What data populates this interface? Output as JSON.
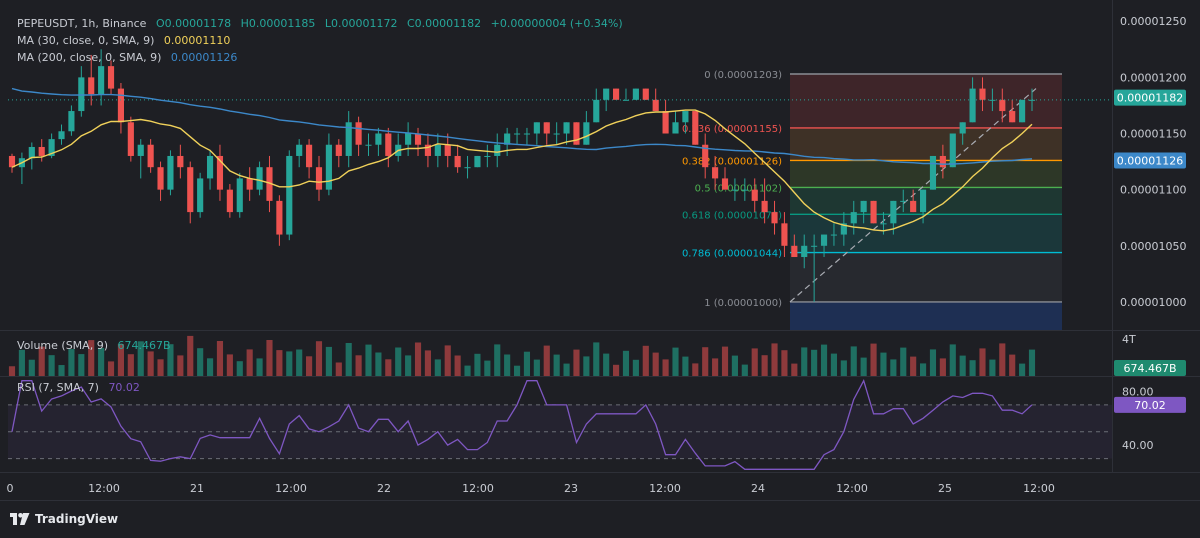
{
  "header": {
    "symbol_line": "PEPEUSDT, 1h, Binance",
    "o": "O0.00001178",
    "h": "H0.00001185",
    "l": "L0.00001172",
    "c": "C0.00001182",
    "change": "+0.00000004 (+0.34%)",
    "ma30_label": "MA (30, close, 0, SMA, 9)",
    "ma30_value": "0.00001110",
    "ma200_label": "MA (200, close, 0, SMA, 9)",
    "ma200_value": "0.00001126"
  },
  "colors": {
    "background": "#1e1f24",
    "bull": "#26a69a",
    "bear": "#ef5350",
    "ma30": "#f0d15a",
    "ma200": "#3c88c9",
    "rsi": "#7e57c2"
  },
  "chart_data": [
    {
      "type": "candlestick",
      "title": "PEPEUSDT, 1h, Binance",
      "y_axis": {
        "side": "right",
        "ticks": [
          "0.00001250",
          "0.00001200",
          "0.00001150",
          "0.00001100",
          "0.00001050",
          "0.00001000"
        ],
        "ylim": [
          9.75e-06,
          1.26e-05
        ]
      },
      "price_label": {
        "value": "0.00001182",
        "color": "#26a69a"
      },
      "ma200_label": {
        "value": "0.00001126",
        "color": "#3c88c9"
      },
      "fibonacci": {
        "levels": [
          {
            "label": "0 (0.00001203)",
            "price": 1.203e-05,
            "color": "#8a8d94"
          },
          {
            "label": "0.236 (0.00001155)",
            "price": 1.155e-05,
            "color": "#ef5350"
          },
          {
            "label": "0.382 (0.00001126)",
            "price": 1.126e-05,
            "color": "#ff9800"
          },
          {
            "label": "0.5 (0.00001102)",
            "price": 1.102e-05,
            "color": "#4caf50"
          },
          {
            "label": "0.618 (0.00001078)",
            "price": 1.078e-05,
            "color": "#089981"
          },
          {
            "label": "0.786 (0.00001044)",
            "price": 1.044e-05,
            "color": "#00bcd4"
          },
          {
            "label": "1 (0.00001000)",
            "price": 1e-05,
            "color": "#8a8d94"
          }
        ]
      },
      "candles": [
        [
          1.13e-05,
          1.132e-05,
          1.115e-05,
          1.12e-05
        ],
        [
          1.12e-05,
          1.133e-05,
          1.105e-05,
          1.128e-05
        ],
        [
          1.128e-05,
          1.142e-05,
          1.118e-05,
          1.138e-05
        ],
        [
          1.138e-05,
          1.145e-05,
          1.125e-05,
          1.13e-05
        ],
        [
          1.13e-05,
          1.15e-05,
          1.128e-05,
          1.145e-05
        ],
        [
          1.145e-05,
          1.158e-05,
          1.14e-05,
          1.152e-05
        ],
        [
          1.152e-05,
          1.175e-05,
          1.148e-05,
          1.17e-05
        ],
        [
          1.17e-05,
          1.21e-05,
          1.165e-05,
          1.2e-05
        ],
        [
          1.2e-05,
          1.22e-05,
          1.175e-05,
          1.185e-05
        ],
        [
          1.185e-05,
          1.225e-05,
          1.175e-05,
          1.21e-05
        ],
        [
          1.21e-05,
          1.215e-05,
          1.185e-05,
          1.19e-05
        ],
        [
          1.19e-05,
          1.195e-05,
          1.15e-05,
          1.16e-05
        ],
        [
          1.16e-05,
          1.165e-05,
          1.125e-05,
          1.13e-05
        ],
        [
          1.13e-05,
          1.145e-05,
          1.11e-05,
          1.14e-05
        ],
        [
          1.14e-05,
          1.145e-05,
          1.115e-05,
          1.12e-05
        ],
        [
          1.12e-05,
          1.125e-05,
          1.09e-05,
          1.1e-05
        ],
        [
          1.1e-05,
          1.135e-05,
          1.095e-05,
          1.13e-05
        ],
        [
          1.13e-05,
          1.14e-05,
          1.11e-05,
          1.12e-05
        ],
        [
          1.12e-05,
          1.125e-05,
          1.07e-05,
          1.08e-05
        ],
        [
          1.08e-05,
          1.115e-05,
          1.075e-05,
          1.11e-05
        ],
        [
          1.11e-05,
          1.135e-05,
          1.1e-05,
          1.13e-05
        ],
        [
          1.13e-05,
          1.14e-05,
          1.09e-05,
          1.1e-05
        ],
        [
          1.1e-05,
          1.105e-05,
          1.075e-05,
          1.08e-05
        ],
        [
          1.08e-05,
          1.115e-05,
          1.075e-05,
          1.11e-05
        ],
        [
          1.11e-05,
          1.12e-05,
          1.09e-05,
          1.1e-05
        ],
        [
          1.1e-05,
          1.125e-05,
          1.095e-05,
          1.12e-05
        ],
        [
          1.12e-05,
          1.13e-05,
          1.08e-05,
          1.09e-05
        ],
        [
          1.09e-05,
          1.095e-05,
          1.05e-05,
          1.06e-05
        ],
        [
          1.06e-05,
          1.135e-05,
          1.055e-05,
          1.13e-05
        ],
        [
          1.13e-05,
          1.145e-05,
          1.12e-05,
          1.14e-05
        ],
        [
          1.14e-05,
          1.145e-05,
          1.11e-05,
          1.12e-05
        ],
        [
          1.12e-05,
          1.13e-05,
          1.09e-05,
          1.1e-05
        ],
        [
          1.1e-05,
          1.15e-05,
          1.095e-05,
          1.14e-05
        ],
        [
          1.14e-05,
          1.145e-05,
          1.12e-05,
          1.13e-05
        ],
        [
          1.13e-05,
          1.17e-05,
          1.12e-05,
          1.16e-05
        ],
        [
          1.16e-05,
          1.165e-05,
          1.13e-05,
          1.14e-05
        ],
        [
          1.14e-05,
          1.15e-05,
          1.13e-05,
          1.14e-05
        ],
        [
          1.14e-05,
          1.155e-05,
          1.13e-05,
          1.15e-05
        ],
        [
          1.15e-05,
          1.155e-05,
          1.12e-05,
          1.13e-05
        ],
        [
          1.13e-05,
          1.15e-05,
          1.125e-05,
          1.14e-05
        ],
        [
          1.14e-05,
          1.16e-05,
          1.13e-05,
          1.15e-05
        ],
        [
          1.15e-05,
          1.155e-05,
          1.13e-05,
          1.14e-05
        ],
        [
          1.14e-05,
          1.15e-05,
          1.12e-05,
          1.13e-05
        ],
        [
          1.13e-05,
          1.15e-05,
          1.12e-05,
          1.14e-05
        ],
        [
          1.14e-05,
          1.15e-05,
          1.12e-05,
          1.13e-05
        ],
        [
          1.13e-05,
          1.14e-05,
          1.115e-05,
          1.12e-05
        ],
        [
          1.12e-05,
          1.13e-05,
          1.11e-05,
          1.12e-05
        ],
        [
          1.12e-05,
          1.13e-05,
          1.12e-05,
          1.13e-05
        ],
        [
          1.13e-05,
          1.14e-05,
          1.12e-05,
          1.13e-05
        ],
        [
          1.13e-05,
          1.15e-05,
          1.12e-05,
          1.14e-05
        ],
        [
          1.14e-05,
          1.155e-05,
          1.13e-05,
          1.15e-05
        ],
        [
          1.15e-05,
          1.155e-05,
          1.14e-05,
          1.15e-05
        ],
        [
          1.15e-05,
          1.155e-05,
          1.14e-05,
          1.15e-05
        ],
        [
          1.15e-05,
          1.16e-05,
          1.14e-05,
          1.16e-05
        ],
        [
          1.16e-05,
          1.16e-05,
          1.14e-05,
          1.15e-05
        ],
        [
          1.15e-05,
          1.16e-05,
          1.14e-05,
          1.15e-05
        ],
        [
          1.15e-05,
          1.16e-05,
          1.14e-05,
          1.16e-05
        ],
        [
          1.16e-05,
          1.16e-05,
          1.14e-05,
          1.14e-05
        ],
        [
          1.14e-05,
          1.17e-05,
          1.14e-05,
          1.16e-05
        ],
        [
          1.16e-05,
          1.19e-05,
          1.16e-05,
          1.18e-05
        ],
        [
          1.18e-05,
          1.19e-05,
          1.17e-05,
          1.19e-05
        ],
        [
          1.19e-05,
          1.19e-05,
          1.18e-05,
          1.18e-05
        ],
        [
          1.18e-05,
          1.19e-05,
          1.18e-05,
          1.18e-05
        ],
        [
          1.18e-05,
          1.19e-05,
          1.18e-05,
          1.19e-05
        ],
        [
          1.19e-05,
          1.19e-05,
          1.18e-05,
          1.18e-05
        ],
        [
          1.18e-05,
          1.19e-05,
          1.17e-05,
          1.17e-05
        ],
        [
          1.17e-05,
          1.18e-05,
          1.15e-05,
          1.15e-05
        ],
        [
          1.15e-05,
          1.17e-05,
          1.15e-05,
          1.16e-05
        ],
        [
          1.16e-05,
          1.17e-05,
          1.15e-05,
          1.17e-05
        ],
        [
          1.17e-05,
          1.17e-05,
          1.14e-05,
          1.14e-05
        ],
        [
          1.14e-05,
          1.15e-05,
          1.11e-05,
          1.12e-05
        ],
        [
          1.12e-05,
          1.13e-05,
          1.1e-05,
          1.11e-05
        ],
        [
          1.11e-05,
          1.12e-05,
          1.1e-05,
          1.1e-05
        ],
        [
          1.1e-05,
          1.11e-05,
          1.09e-05,
          1.1e-05
        ],
        [
          1.1e-05,
          1.11e-05,
          1.09e-05,
          1.1e-05
        ],
        [
          1.1e-05,
          1.11e-05,
          1.08e-05,
          1.09e-05
        ],
        [
          1.09e-05,
          1.11e-05,
          1.07e-05,
          1.08e-05
        ],
        [
          1.08e-05,
          1.09e-05,
          1.06e-05,
          1.07e-05
        ],
        [
          1.07e-05,
          1.08e-05,
          1.04e-05,
          1.05e-05
        ],
        [
          1.05e-05,
          1.06e-05,
          1.04e-05,
          1.04e-05
        ],
        [
          1.04e-05,
          1.06e-05,
          1.03e-05,
          1.05e-05
        ],
        [
          1.05e-05,
          1.06e-05,
          1e-05,
          1.05e-05
        ],
        [
          1.05e-05,
          1.06e-05,
          1.04e-05,
          1.06e-05
        ],
        [
          1.06e-05,
          1.07e-05,
          1.05e-05,
          1.06e-05
        ],
        [
          1.06e-05,
          1.08e-05,
          1.05e-05,
          1.07e-05
        ],
        [
          1.07e-05,
          1.09e-05,
          1.06e-05,
          1.08e-05
        ],
        [
          1.08e-05,
          1.09e-05,
          1.07e-05,
          1.09e-05
        ],
        [
          1.09e-05,
          1.09e-05,
          1.07e-05,
          1.07e-05
        ],
        [
          1.07e-05,
          1.08e-05,
          1.06e-05,
          1.07e-05
        ],
        [
          1.07e-05,
          1.09e-05,
          1.06e-05,
          1.09e-05
        ],
        [
          1.09e-05,
          1.1e-05,
          1.08e-05,
          1.09e-05
        ],
        [
          1.09e-05,
          1.1e-05,
          1.08e-05,
          1.08e-05
        ],
        [
          1.08e-05,
          1.1e-05,
          1.07e-05,
          1.1e-05
        ],
        [
          1.1e-05,
          1.13e-05,
          1.1e-05,
          1.13e-05
        ],
        [
          1.13e-05,
          1.14e-05,
          1.11e-05,
          1.12e-05
        ],
        [
          1.12e-05,
          1.15e-05,
          1.12e-05,
          1.15e-05
        ],
        [
          1.15e-05,
          1.16e-05,
          1.14e-05,
          1.16e-05
        ],
        [
          1.16e-05,
          1.2e-05,
          1.16e-05,
          1.19e-05
        ],
        [
          1.19e-05,
          1.2e-05,
          1.17e-05,
          1.18e-05
        ],
        [
          1.18e-05,
          1.19e-05,
          1.17e-05,
          1.18e-05
        ],
        [
          1.18e-05,
          1.19e-05,
          1.16e-05,
          1.17e-05
        ],
        [
          1.17e-05,
          1.18e-05,
          1.16e-05,
          1.16e-05
        ],
        [
          1.16e-05,
          1.18e-05,
          1.16e-05,
          1.18e-05
        ],
        [
          1.18e-05,
          1.19e-05,
          1.17e-05,
          1.18e-05
        ]
      ]
    },
    {
      "type": "bar",
      "title": "Volume (SMA, 9)",
      "value": "674.467B",
      "y_axis": {
        "ticks": [
          "4T"
        ]
      }
    },
    {
      "type": "line",
      "title": "RSI (7, SMA, 7)",
      "value": "70.02",
      "y_axis": {
        "ticks": [
          "80.00",
          "40.00"
        ],
        "ylim": [
          20,
          90
        ]
      },
      "bands": [
        70,
        50,
        30
      ]
    }
  ],
  "x_axis": {
    "ticks": [
      "0",
      "12:00",
      "21",
      "12:00",
      "22",
      "12:00",
      "23",
      "12:00",
      "24",
      "12:00",
      "25",
      "12:00"
    ]
  },
  "footer": {
    "brand": "TradingView"
  }
}
